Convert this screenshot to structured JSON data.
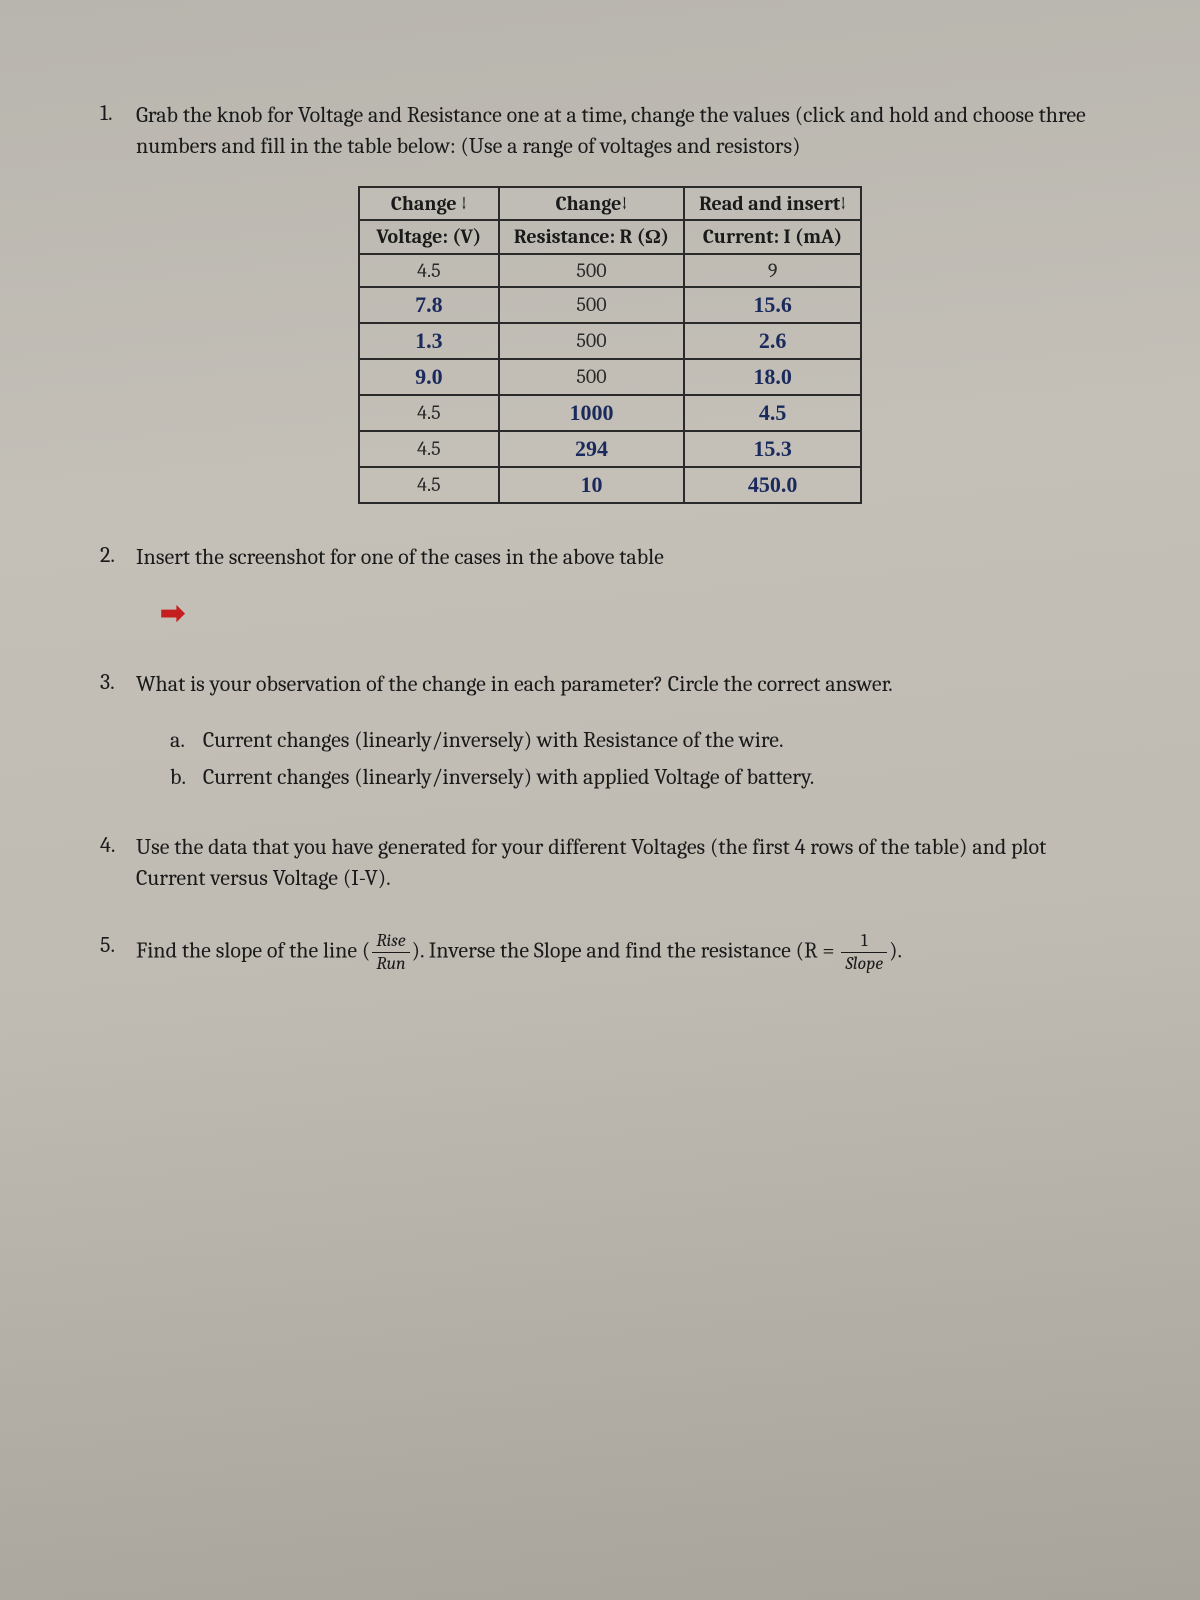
{
  "q1": {
    "num": "1.",
    "text": "Grab the knob for Voltage and Resistance one at a time, change the values (click and hold and choose three numbers and fill in the table below:  (Use a range of voltages and resistors)"
  },
  "table": {
    "header_row1": [
      "Change ↓",
      "Change↓",
      "Read and insert↓"
    ],
    "header_row2": [
      "Voltage: (V)",
      "Resistance: R (Ω)",
      "Current: I (mA)"
    ],
    "rows": [
      {
        "v": "4.5",
        "v_hand": false,
        "r": "500",
        "r_hand": false,
        "i": "9",
        "i_hand": false
      },
      {
        "v": "7.8",
        "v_hand": true,
        "r": "500",
        "r_hand": false,
        "i": "15.6",
        "i_hand": true
      },
      {
        "v": "1.3",
        "v_hand": true,
        "r": "500",
        "r_hand": false,
        "i": "2.6",
        "i_hand": true
      },
      {
        "v": "9.0",
        "v_hand": true,
        "r": "500",
        "r_hand": false,
        "i": "18.0",
        "i_hand": true
      },
      {
        "v": "4.5",
        "v_hand": false,
        "r": "1000",
        "r_hand": true,
        "i": "4.5",
        "i_hand": true
      },
      {
        "v": "4.5",
        "v_hand": false,
        "r": "294",
        "r_hand": true,
        "i": "15.3",
        "i_hand": true
      },
      {
        "v": "4.5",
        "v_hand": false,
        "r": "10",
        "r_hand": true,
        "i": "450.0",
        "i_hand": true
      }
    ],
    "colors": {
      "border": "#2a2a2a",
      "handwritten": "#1a2a5c",
      "printed": "#2a2a2a"
    }
  },
  "q2": {
    "num": "2.",
    "text": "Insert the screenshot for one of the cases in the above table",
    "arrow_color": "#c41e1e"
  },
  "q3": {
    "num": "3.",
    "text": "What is your observation of the change in each parameter? Circle the correct answer.",
    "a_label": "a.",
    "a_text": "Current changes (linearly/inversely) with Resistance of the wire.",
    "b_label": "b.",
    "b_text": "Current changes (linearly/inversely) with applied Voltage of battery."
  },
  "q4": {
    "num": "4.",
    "text": "Use the data that you have generated for your different Voltages (the first 4 rows of the table) and plot Current versus Voltage (I-V)."
  },
  "q5": {
    "num": "5.",
    "text_before": "Find the slope of the line (",
    "frac1_num": "Rise",
    "frac1_den": "Run",
    "text_mid": "). Inverse the Slope and find the resistance (R = ",
    "frac2_num": "1",
    "frac2_den": "Slope",
    "text_after": ")."
  }
}
